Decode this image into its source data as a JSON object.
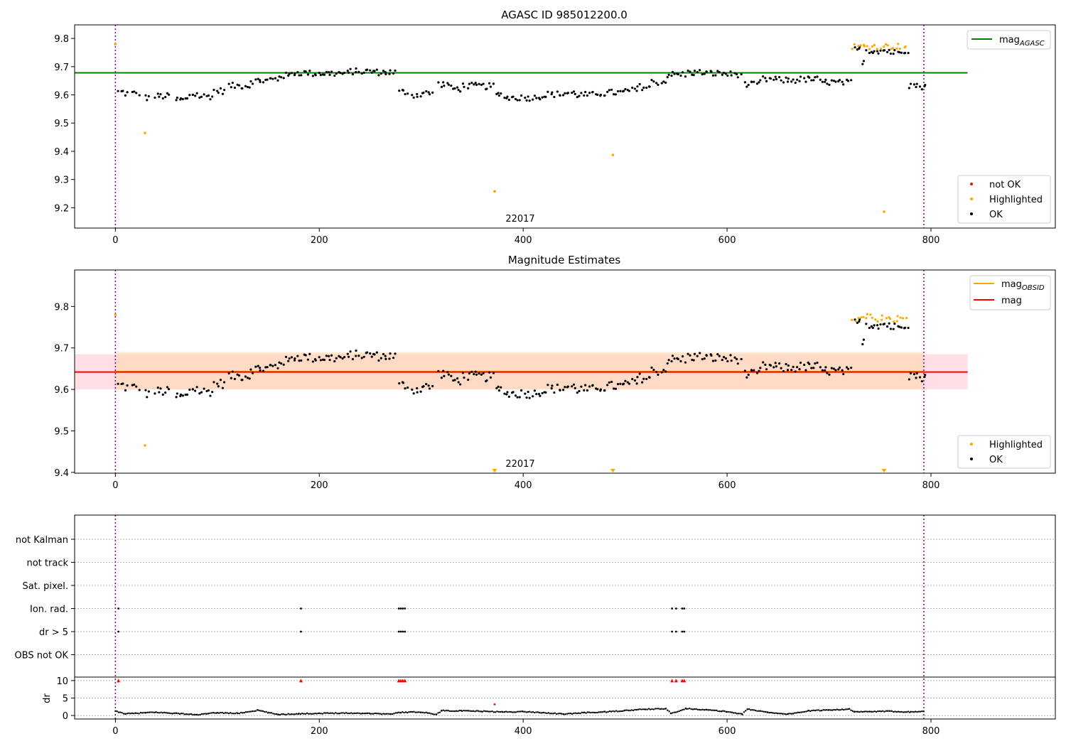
{
  "chart_data": [
    {
      "type": "scatter",
      "title": "AGASC ID 985012200.0",
      "xlabel": "",
      "ylabel": "",
      "xlim": [
        -40,
        922
      ],
      "ylim": [
        9.128,
        9.848
      ],
      "xticks": [
        "0",
        "200",
        "400",
        "600",
        "800"
      ],
      "yticks": [
        "9.2",
        "9.3",
        "9.4",
        "9.5",
        "9.6",
        "9.7",
        "9.8"
      ],
      "obsid_label": "22017",
      "obs_bounds": [
        0,
        793
      ],
      "mag_agasc": 9.678,
      "mag_agasc_xrange": [
        -40,
        836
      ],
      "legends": {
        "lines": [
          {
            "label": "mag",
            "sub": "AGASC",
            "color": "#008000"
          }
        ],
        "markers": [
          {
            "label": "not OK",
            "color": "#ff0000"
          },
          {
            "label": "Highlighted",
            "color": "#ffa500"
          },
          {
            "label": "OK",
            "color": "#000000"
          }
        ]
      },
      "highlighted_points": [
        [
          0,
          9.78
        ],
        [
          29,
          9.465
        ],
        [
          372,
          9.258
        ],
        [
          488,
          9.387
        ],
        [
          754,
          9.186
        ]
      ],
      "segments_ok": [
        [
          2,
          7,
          9.61
        ],
        [
          8,
          12,
          9.605
        ],
        [
          16,
          24,
          9.605
        ],
        [
          28,
          34,
          9.59
        ],
        [
          38,
          54,
          9.595
        ],
        [
          58,
          72,
          9.583
        ],
        [
          72,
          82,
          9.602
        ],
        [
          82,
          96,
          9.595
        ],
        [
          96,
          108,
          9.614
        ],
        [
          110,
          132,
          9.632
        ],
        [
          132,
          150,
          9.65
        ],
        [
          150,
          160,
          9.655
        ],
        [
          160,
          172,
          9.668
        ],
        [
          172,
          190,
          9.678
        ],
        [
          190,
          230,
          9.676
        ],
        [
          230,
          255,
          9.683
        ],
        [
          255,
          275,
          9.68
        ],
        [
          278,
          288,
          9.61
        ],
        [
          290,
          300,
          9.6
        ],
        [
          300,
          312,
          9.606
        ],
        [
          316,
          328,
          9.638
        ],
        [
          328,
          340,
          9.622
        ],
        [
          340,
          360,
          9.632
        ],
        [
          360,
          372,
          9.63
        ],
        [
          372,
          382,
          9.6
        ],
        [
          382,
          398,
          9.59
        ],
        [
          398,
          412,
          9.59
        ],
        [
          412,
          422,
          9.595
        ],
        [
          422,
          440,
          9.602
        ],
        [
          440,
          452,
          9.606
        ],
        [
          452,
          472,
          9.6
        ],
        [
          472,
          484,
          9.605
        ],
        [
          484,
          500,
          9.608
        ],
        [
          500,
          512,
          9.615
        ],
        [
          512,
          526,
          9.628
        ],
        [
          526,
          540,
          9.645
        ],
        [
          540,
          560,
          9.672
        ],
        [
          560,
          580,
          9.679
        ],
        [
          580,
          600,
          9.676
        ],
        [
          600,
          614,
          9.673
        ],
        [
          616,
          632,
          9.636
        ],
        [
          632,
          650,
          9.655
        ],
        [
          650,
          668,
          9.652
        ],
        [
          668,
          690,
          9.655
        ],
        [
          690,
          706,
          9.645
        ],
        [
          706,
          722,
          9.643
        ],
        [
          724,
          732,
          9.76
        ],
        [
          732,
          736,
          9.72
        ],
        [
          736,
          760,
          9.757
        ],
        [
          760,
          770,
          9.75
        ],
        [
          770,
          778,
          9.758
        ],
        [
          778,
          786,
          9.635
        ],
        [
          786,
          795,
          9.63
        ]
      ],
      "segments_highlighted": [
        [
          722,
          776,
          9.772
        ]
      ]
    },
    {
      "type": "scatter",
      "title": "Magnitude Estimates",
      "xlabel": "",
      "ylabel": "",
      "xlim": [
        -40,
        922
      ],
      "ylim": [
        9.398,
        9.888
      ],
      "xticks": [
        "0",
        "200",
        "400",
        "600",
        "800"
      ],
      "yticks": [
        "9.4",
        "9.5",
        "9.6",
        "9.7",
        "9.8"
      ],
      "obsid_label": "22017",
      "obs_bounds": [
        0,
        793
      ],
      "mag_obsid": 9.643,
      "mag_obsid_band": [
        9.6,
        9.69
      ],
      "mag": 9.642,
      "mag_band": [
        9.6,
        9.685
      ],
      "lines_xrange": [
        -40,
        836
      ],
      "legends": {
        "lines": [
          {
            "label": "mag",
            "sub": "OBSID",
            "color": "#ffa500"
          },
          {
            "label": "mag",
            "sub": "",
            "color": "#ff0000"
          }
        ],
        "markers": [
          {
            "label": "Highlighted",
            "color": "#ffa500"
          },
          {
            "label": "OK",
            "color": "#000000"
          }
        ]
      },
      "highlighted_points": [
        [
          0,
          9.78
        ],
        [
          29,
          9.465
        ]
      ],
      "below_range_markers": [
        372,
        488,
        754
      ]
    },
    {
      "type": "scatter",
      "title": "",
      "xlabel": "",
      "ylabel": "",
      "xlim": [
        -40,
        922
      ],
      "xticks": [
        "0",
        "200",
        "400",
        "600",
        "800"
      ],
      "flag_rows": [
        "not Kalman",
        "not track",
        "Sat. pixel.",
        "Ion. rad.",
        "dr > 5",
        "OBS not OK"
      ],
      "flag_points": [
        {
          "row": "Ion. rad.",
          "x": [
            3,
            182,
            278,
            280,
            282,
            284,
            546,
            550,
            556,
            558
          ]
        },
        {
          "row": "dr > 5",
          "x": [
            3,
            182,
            278,
            280,
            282,
            284,
            546,
            550,
            556,
            558
          ]
        }
      ],
      "dr_ylabel": "dr",
      "dr_yticks": [
        "0",
        "5",
        "10"
      ],
      "dr_ylim": [
        -1,
        11
      ],
      "dr_clipped_x": [
        3,
        182,
        278,
        280,
        282,
        284,
        546,
        550,
        556,
        558
      ],
      "dr_clip_value": 10,
      "dr_outlier": [
        372,
        3.2
      ],
      "dr_trend": [
        [
          0,
          1.2
        ],
        [
          10,
          0.5
        ],
        [
          20,
          0.6
        ],
        [
          30,
          0.8
        ],
        [
          40,
          0.9
        ],
        [
          60,
          0.6
        ],
        [
          80,
          0.2
        ],
        [
          100,
          0.8
        ],
        [
          120,
          0.6
        ],
        [
          140,
          1.5
        ],
        [
          150,
          0.8
        ],
        [
          160,
          0.3
        ],
        [
          180,
          0.5
        ],
        [
          200,
          0.6
        ],
        [
          220,
          0.7
        ],
        [
          250,
          0.6
        ],
        [
          270,
          0.4
        ],
        [
          280,
          0.9
        ],
        [
          300,
          1.0
        ],
        [
          315,
          0.3
        ],
        [
          320,
          1.4
        ],
        [
          340,
          1.3
        ],
        [
          360,
          1.2
        ],
        [
          380,
          1.0
        ],
        [
          400,
          1.1
        ],
        [
          420,
          0.8
        ],
        [
          440,
          0.4
        ],
        [
          460,
          0.8
        ],
        [
          480,
          1.0
        ],
        [
          500,
          1.4
        ],
        [
          520,
          1.8
        ],
        [
          540,
          1.9
        ],
        [
          545,
          0.6
        ],
        [
          560,
          2.0
        ],
        [
          580,
          1.6
        ],
        [
          600,
          1.1
        ],
        [
          615,
          0.4
        ],
        [
          620,
          1.8
        ],
        [
          640,
          0.9
        ],
        [
          660,
          0.4
        ],
        [
          680,
          1.3
        ],
        [
          700,
          1.6
        ],
        [
          720,
          1.8
        ],
        [
          725,
          1.0
        ],
        [
          740,
          1.1
        ],
        [
          760,
          1.2
        ],
        [
          780,
          1.0
        ],
        [
          793,
          1.3
        ]
      ]
    }
  ]
}
